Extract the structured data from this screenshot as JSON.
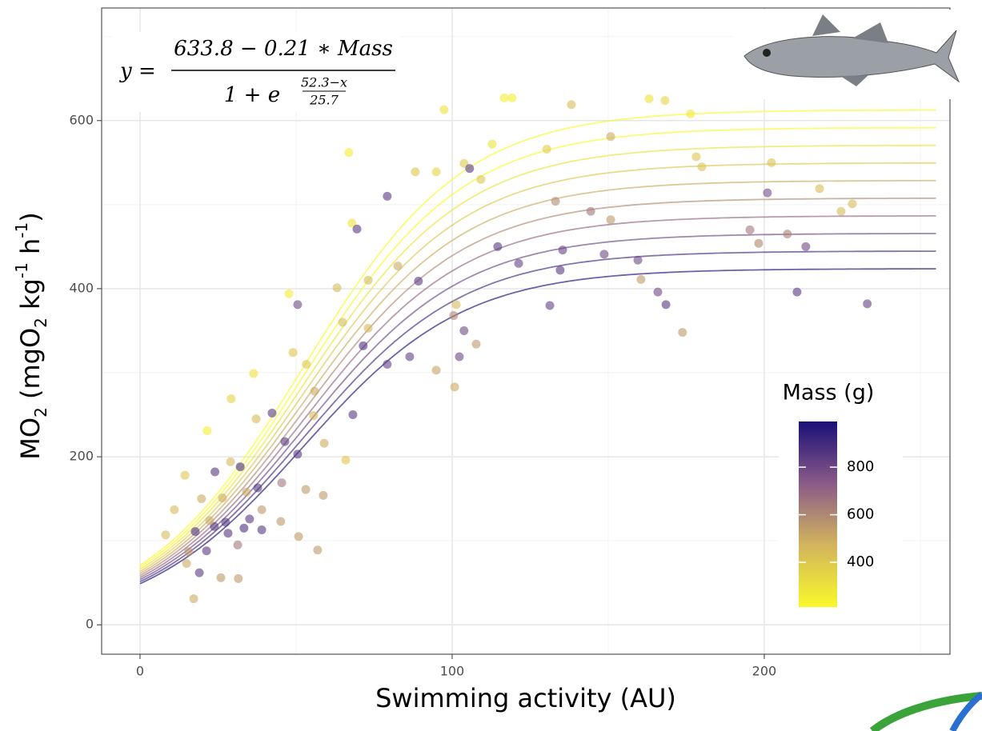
{
  "chart_data": {
    "type": "scatter",
    "x_label": "Swimming activity (AU)",
    "y_label_parts": [
      "MO",
      "2",
      " (mgO",
      "2",
      " kg",
      "-1",
      " h",
      "-1",
      ")"
    ],
    "equation": {
      "lhs": "y =",
      "numerator": "633.8 − 0.21 ∗ Mass",
      "denominator": "1 + e",
      "exp_numerator": "52.3−x",
      "exp_denominator": "25.7"
    },
    "fit": {
      "a": 633.8,
      "b": 0.21,
      "c": 52.3,
      "d": 25.7,
      "masses": [
        100,
        200,
        300,
        400,
        500,
        600,
        700,
        800,
        900,
        1000
      ],
      "xrange": [
        0,
        255
      ]
    },
    "xlim": [
      -12.3,
      259.5
    ],
    "ylim": [
      -35,
      734
    ],
    "xticks": [
      0,
      100,
      200
    ],
    "yticks": [
      0,
      200,
      400,
      600
    ],
    "grid": true,
    "colorbar": {
      "title": "Mass (g)",
      "lim": [
        212,
        992
      ],
      "ticks": [
        400,
        600,
        800
      ],
      "colors": [
        "#f9f92a",
        "#d2b45c",
        "#8a5a88",
        "#1a1078"
      ]
    },
    "x": [
      17.2,
      8.2,
      11,
      14.4,
      21.5,
      29.2,
      36.4,
      47.7,
      66.9,
      67.9,
      69.5,
      79.2,
      88.2,
      94.9,
      97.4,
      103.8,
      105.6,
      109.2,
      112.8,
      116.7,
      119.2,
      130.3,
      138.2,
      150.8,
      163.1,
      168.2,
      176.4,
      178.2,
      180,
      202.3,
      201,
      217.7,
      224.6,
      228.2,
      195.4,
      198.2,
      207.4,
      213.3,
      210.5,
      233,
      173.8,
      168.5,
      165.9,
      159.5,
      160.5,
      148.7,
      150.8,
      144.4,
      131.3,
      134.6,
      135.4,
      133.1,
      114.6,
      121.3,
      100.5,
      101.3,
      102.3,
      100.8,
      94.9,
      103.8,
      107.7,
      79.2,
      86.4,
      89.2,
      82.6,
      73.1,
      73.1,
      71.5,
      64.9,
      63.1,
      68.2,
      65.9,
      59,
      55.6,
      53.3,
      50.5,
      49,
      46.4,
      45.4,
      50.5,
      55.9,
      42.3,
      37.2,
      32.1,
      37.7,
      33.3,
      31.3,
      27.4,
      26.4,
      24,
      19.7,
      17.7,
      15.6,
      21.3,
      19,
      14.9,
      25.9,
      31.5,
      45.1,
      50.8,
      56.9,
      53.1,
      58.7,
      34.1,
      29,
      39,
      35.1,
      39,
      23.8,
      22.3,
      28.2
    ],
    "y": [
      31,
      107,
      137,
      178,
      231,
      269,
      299,
      394,
      562,
      478,
      471,
      510,
      539,
      539,
      613,
      549,
      543,
      530,
      572,
      627,
      627,
      566,
      619,
      581,
      626,
      624,
      608,
      557,
      545,
      550,
      514,
      519,
      492,
      501,
      470,
      454,
      465,
      450,
      396,
      382,
      348,
      381,
      396,
      434,
      411,
      441,
      482,
      492,
      380,
      422,
      446,
      504,
      450,
      430,
      368,
      381,
      319,
      283,
      303,
      350,
      334,
      310,
      319,
      409,
      427,
      353,
      410,
      332,
      360,
      401,
      250,
      196,
      216,
      249,
      310,
      381,
      324,
      218,
      169,
      203,
      278,
      252,
      245,
      188,
      163,
      115,
      95,
      122,
      151,
      182,
      150,
      111,
      87,
      88,
      62,
      73,
      56,
      55,
      123,
      105,
      89,
      161,
      154,
      158,
      194,
      137,
      126,
      113,
      117,
      124,
      109
    ],
    "mass": [
      500,
      450,
      450,
      400,
      250,
      350,
      300,
      260,
      260,
      300,
      850,
      850,
      400,
      350,
      300,
      380,
      850,
      400,
      300,
      250,
      250,
      380,
      450,
      500,
      300,
      350,
      280,
      400,
      420,
      420,
      780,
      450,
      450,
      450,
      650,
      600,
      620,
      800,
      850,
      820,
      550,
      850,
      800,
      800,
      550,
      800,
      550,
      650,
      820,
      850,
      820,
      600,
      850,
      820,
      600,
      450,
      800,
      500,
      520,
      800,
      550,
      820,
      820,
      850,
      500,
      450,
      450,
      880,
      450,
      450,
      850,
      400,
      500,
      450,
      400,
      800,
      400,
      850,
      650,
      850,
      500,
      850,
      450,
      900,
      850,
      880,
      650,
      850,
      500,
      850,
      500,
      880,
      550,
      850,
      850,
      500,
      550,
      550,
      550,
      550,
      550,
      550,
      550,
      500,
      450,
      550,
      850,
      850,
      850,
      500,
      850
    ]
  }
}
